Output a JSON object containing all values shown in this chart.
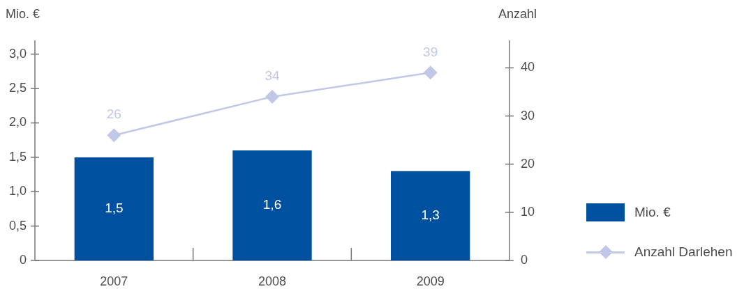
{
  "chart_data": {
    "type": "bar",
    "ylabel": "Mio. €",
    "y2label": "Anzahl",
    "categories": [
      "2007",
      "2008",
      "2009"
    ],
    "series": [
      {
        "name": "Mio. €",
        "color": "#0050a0",
        "values": [
          1.5,
          1.6,
          1.3
        ],
        "value_labels": [
          "1,5",
          "1,6",
          "1,3"
        ]
      },
      {
        "type": "line",
        "name": "Anzahl Darlehen",
        "color": "#c1c8e7",
        "axis": "y2",
        "marker": "diamond",
        "line_style": "solid",
        "values": [
          26,
          34,
          39
        ],
        "value_labels": [
          "26",
          "34",
          "39"
        ]
      }
    ],
    "ylim": [
      0,
      3.2
    ],
    "yticks": [
      0,
      {
        "value": 0.5,
        "label": "0,5"
      },
      {
        "value": 1,
        "label": "1,0"
      },
      {
        "value": 1.5,
        "label": "1,5"
      },
      {
        "value": 2,
        "label": "2,0"
      },
      {
        "value": 2.5,
        "label": "2,5"
      },
      {
        "value": 3,
        "label": "3,0"
      }
    ],
    "y2lim": [
      0,
      45.7
    ],
    "y2ticks": [
      0,
      10,
      20,
      30,
      40
    ],
    "legend": "right"
  }
}
